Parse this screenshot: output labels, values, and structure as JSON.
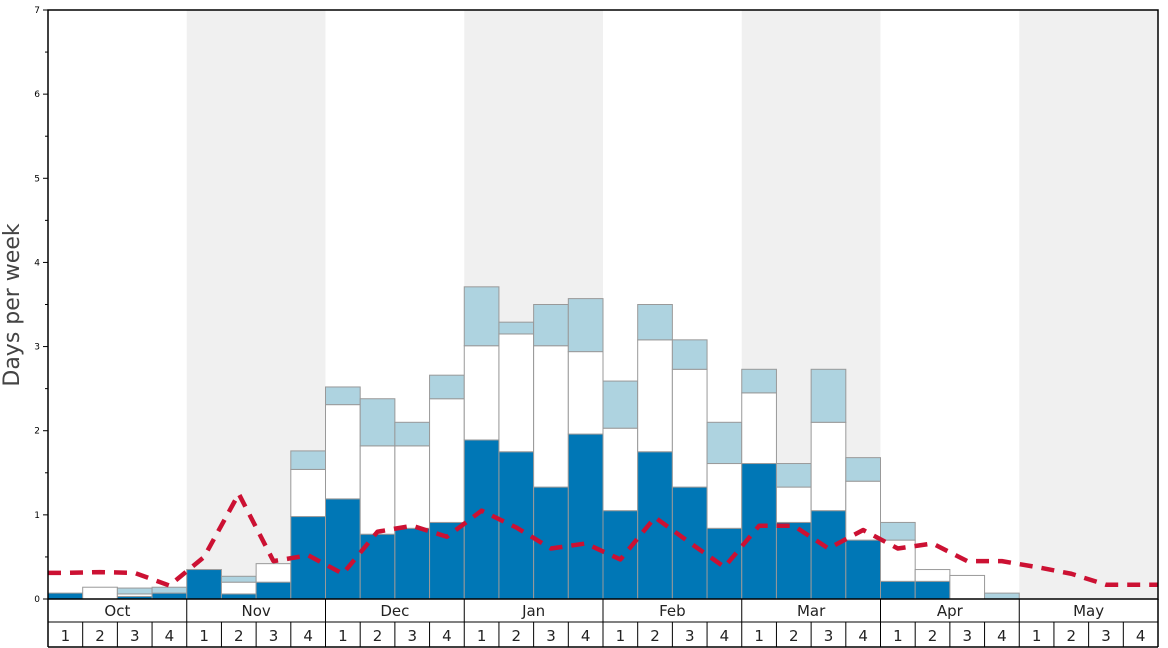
{
  "chart_data": {
    "type": "bar",
    "title": "",
    "xlabel": "",
    "ylabel": "Days per week",
    "ylim": [
      0,
      7
    ],
    "y_ticks": [
      "0",
      "1",
      "2",
      "3",
      "4",
      "5",
      "6",
      "7"
    ],
    "grid": false,
    "stacked": true,
    "months": [
      "Oct",
      "Nov",
      "Dec",
      "Jan",
      "Feb",
      "Mar",
      "Apr",
      "May"
    ],
    "weeks": [
      "1",
      "2",
      "3",
      "4"
    ],
    "colors": {
      "dark": "#0077b6",
      "middle": "#ffffff",
      "light": "#aed3e0",
      "line": "#cc1133",
      "band": "#f0f0f0",
      "bar_stroke": "#999999"
    },
    "series": [
      {
        "values": [
          0.07,
          0,
          0.03,
          0.07,
          0.35,
          0.06,
          0.2,
          0.98,
          1.19,
          0.77,
          0.84,
          0.91,
          1.89,
          1.75,
          1.33,
          1.96,
          1.05,
          1.75,
          1.33,
          0.84,
          1.61,
          0.91,
          1.05,
          0.7,
          0.21,
          0.21,
          0,
          0,
          0,
          0,
          0,
          0
        ]
      },
      {
        "values": [
          0,
          0.14,
          0.03,
          0,
          0,
          0.14,
          0.22,
          0.56,
          1.12,
          1.05,
          0.98,
          1.47,
          1.12,
          1.4,
          1.68,
          0.98,
          0.98,
          1.33,
          1.4,
          0.77,
          0.84,
          0.42,
          1.05,
          0.7,
          0.49,
          0.14,
          0.28,
          0,
          0,
          0,
          0,
          0
        ]
      },
      {
        "values": [
          0,
          0,
          0.07,
          0.07,
          0,
          0.07,
          0,
          0.22,
          0.21,
          0.56,
          0.28,
          0.28,
          0.7,
          0.14,
          0.49,
          0.63,
          0.56,
          0.42,
          0.35,
          0.49,
          0.28,
          0.28,
          0.63,
          0.28,
          0.21,
          0,
          0,
          0.07,
          0,
          0,
          0,
          0
        ]
      },
      {
        "values": [
          0.31,
          0.32,
          0.31,
          0.16,
          0.5,
          1.25,
          0.45,
          0.52,
          0.3,
          0.8,
          0.87,
          0.74,
          1.05,
          0.85,
          0.6,
          0.66,
          0.47,
          0.97,
          0.67,
          0.38,
          0.87,
          0.87,
          0.6,
          0.82,
          0.6,
          0.66,
          0.45,
          0.45,
          0.38,
          0.3,
          0.17,
          0.17
        ]
      }
    ]
  }
}
